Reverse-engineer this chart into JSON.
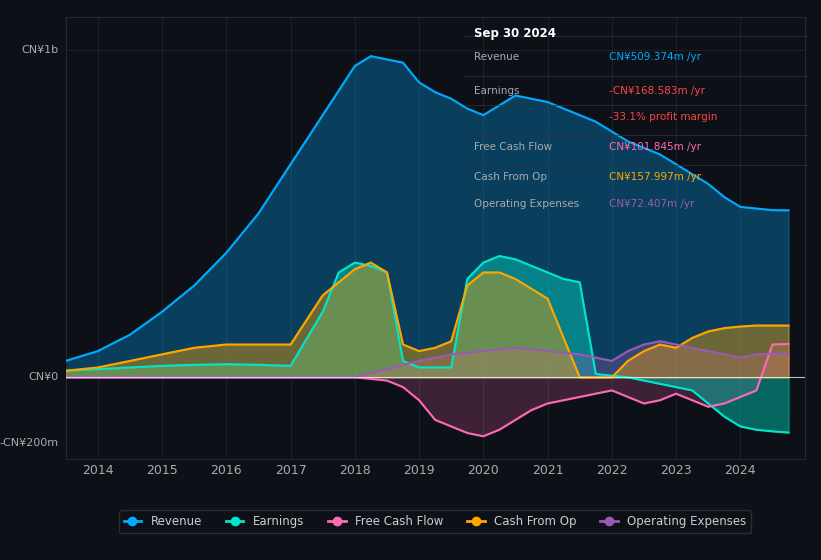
{
  "bg_color": "#0d1117",
  "plot_bg_color": "#0d1117",
  "grid_color": "#1e2a3a",
  "info_box": {
    "date": "Sep 30 2024",
    "rows": [
      {
        "label": "Revenue",
        "value": "CN¥509.374m /yr",
        "value_color": "#00aaff"
      },
      {
        "label": "Earnings",
        "value": "-CN¥168.583m /yr",
        "value_color": "#ff4444"
      },
      {
        "label": "",
        "value": "-33.1% profit margin",
        "value_color": "#ff4444"
      },
      {
        "label": "Free Cash Flow",
        "value": "CN¥101.845m /yr",
        "value_color": "#ff69b4"
      },
      {
        "label": "Cash From Op",
        "value": "CN¥157.997m /yr",
        "value_color": "#ffa500"
      },
      {
        "label": "Operating Expenses",
        "value": "CN¥72.407m /yr",
        "value_color": "#9b59b6"
      }
    ]
  },
  "colors": {
    "revenue": "#00aaff",
    "earnings": "#00e5cc",
    "free_cash_flow": "#ff69b4",
    "cash_from_op": "#ffa500",
    "operating_expenses": "#9b59b6"
  },
  "legend": [
    {
      "label": "Revenue",
      "color": "#00aaff"
    },
    {
      "label": "Earnings",
      "color": "#00e5cc"
    },
    {
      "label": "Free Cash Flow",
      "color": "#ff69b4"
    },
    {
      "label": "Cash From Op",
      "color": "#ffa500"
    },
    {
      "label": "Operating Expenses",
      "color": "#9b59b6"
    }
  ],
  "ylim": [
    -250000000,
    1100000000
  ],
  "revenue_data": {
    "x": [
      2013.5,
      2014.0,
      2014.5,
      2015.0,
      2015.5,
      2016.0,
      2016.5,
      2017.0,
      2017.5,
      2018.0,
      2018.25,
      2018.5,
      2018.75,
      2019.0,
      2019.25,
      2019.5,
      2019.75,
      2020.0,
      2020.25,
      2020.5,
      2020.75,
      2021.0,
      2021.25,
      2021.5,
      2021.75,
      2022.0,
      2022.25,
      2022.5,
      2022.75,
      2023.0,
      2023.25,
      2023.5,
      2023.75,
      2024.0,
      2024.5,
      2024.75
    ],
    "y": [
      50000000,
      80000000,
      130000000,
      200000000,
      280000000,
      380000000,
      500000000,
      650000000,
      800000000,
      950000000,
      980000000,
      970000000,
      960000000,
      900000000,
      870000000,
      850000000,
      820000000,
      800000000,
      830000000,
      860000000,
      850000000,
      840000000,
      820000000,
      800000000,
      780000000,
      750000000,
      720000000,
      700000000,
      680000000,
      650000000,
      620000000,
      590000000,
      550000000,
      520000000,
      510000000,
      509374000
    ]
  },
  "earnings_data": {
    "x": [
      2013.5,
      2014.0,
      2014.5,
      2015.0,
      2015.5,
      2016.0,
      2016.5,
      2017.0,
      2017.5,
      2017.75,
      2018.0,
      2018.25,
      2018.5,
      2018.75,
      2019.0,
      2019.25,
      2019.5,
      2019.75,
      2020.0,
      2020.25,
      2020.5,
      2020.75,
      2021.0,
      2021.25,
      2021.5,
      2021.75,
      2022.0,
      2022.25,
      2022.5,
      2022.75,
      2023.0,
      2023.25,
      2023.5,
      2023.75,
      2024.0,
      2024.25,
      2024.5,
      2024.75
    ],
    "y": [
      20000000,
      25000000,
      30000000,
      35000000,
      38000000,
      40000000,
      38000000,
      35000000,
      200000000,
      320000000,
      350000000,
      340000000,
      320000000,
      50000000,
      30000000,
      30000000,
      30000000,
      300000000,
      350000000,
      370000000,
      360000000,
      340000000,
      320000000,
      300000000,
      290000000,
      10000000,
      5000000,
      0,
      -10000000,
      -20000000,
      -30000000,
      -40000000,
      -80000000,
      -120000000,
      -150000000,
      -160000000,
      -165000000,
      -168583000
    ]
  },
  "free_cash_flow_data": {
    "x": [
      2013.5,
      2014.0,
      2015.0,
      2016.0,
      2017.0,
      2018.0,
      2018.5,
      2018.75,
      2019.0,
      2019.25,
      2019.5,
      2019.75,
      2020.0,
      2020.25,
      2020.5,
      2020.75,
      2021.0,
      2021.5,
      2022.0,
      2022.25,
      2022.5,
      2022.75,
      2023.0,
      2023.25,
      2023.5,
      2023.75,
      2024.0,
      2024.25,
      2024.5,
      2024.75
    ],
    "y": [
      0,
      0,
      0,
      0,
      0,
      0,
      -10000000,
      -30000000,
      -70000000,
      -130000000,
      -150000000,
      -170000000,
      -180000000,
      -160000000,
      -130000000,
      -100000000,
      -80000000,
      -60000000,
      -40000000,
      -60000000,
      -80000000,
      -70000000,
      -50000000,
      -70000000,
      -90000000,
      -80000000,
      -60000000,
      -40000000,
      100000000,
      101845000
    ]
  },
  "cash_from_op_data": {
    "x": [
      2013.5,
      2014.0,
      2014.5,
      2015.0,
      2015.5,
      2016.0,
      2016.5,
      2017.0,
      2017.5,
      2018.0,
      2018.25,
      2018.5,
      2018.75,
      2019.0,
      2019.25,
      2019.5,
      2019.75,
      2020.0,
      2020.25,
      2020.5,
      2020.75,
      2021.0,
      2021.5,
      2022.0,
      2022.25,
      2022.5,
      2022.75,
      2023.0,
      2023.25,
      2023.5,
      2023.75,
      2024.0,
      2024.25,
      2024.5,
      2024.75
    ],
    "y": [
      20000000,
      30000000,
      50000000,
      70000000,
      90000000,
      100000000,
      100000000,
      100000000,
      250000000,
      330000000,
      350000000,
      320000000,
      100000000,
      80000000,
      90000000,
      110000000,
      280000000,
      320000000,
      320000000,
      300000000,
      270000000,
      240000000,
      0,
      0,
      50000000,
      80000000,
      100000000,
      90000000,
      120000000,
      140000000,
      150000000,
      155000000,
      158000000,
      157997000,
      157997000
    ]
  },
  "operating_expenses_data": {
    "x": [
      2013.5,
      2014.0,
      2015.0,
      2016.0,
      2017.0,
      2018.0,
      2019.0,
      2019.5,
      2020.0,
      2020.5,
      2021.0,
      2021.5,
      2022.0,
      2022.25,
      2022.5,
      2022.75,
      2023.0,
      2023.25,
      2023.5,
      2023.75,
      2024.0,
      2024.25,
      2024.5,
      2024.75
    ],
    "y": [
      0,
      0,
      0,
      0,
      0,
      0,
      50000000,
      70000000,
      80000000,
      90000000,
      80000000,
      70000000,
      50000000,
      80000000,
      100000000,
      110000000,
      100000000,
      90000000,
      80000000,
      70000000,
      60000000,
      70000000,
      72407000,
      72407000
    ]
  }
}
